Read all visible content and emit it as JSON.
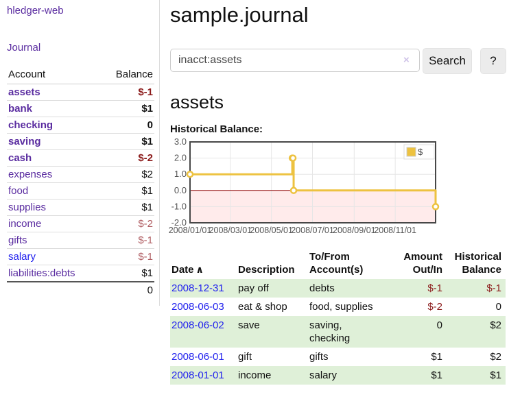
{
  "colors": {
    "link_purple": "#5a2ca0",
    "link_blue": "#2222ee",
    "negative_strong": "#8b1a1a",
    "negative_muted": "#b05d62",
    "row_stripe_green": "#dff0d8",
    "chart_line_gold": "#edc240",
    "chart_negative_fill": "#ffdddd",
    "chart_zero_line": "#8b0000",
    "button_bg": "#ececec"
  },
  "sidebar": {
    "app_title": "hledger-web",
    "journal_label": "Journal",
    "accounts": {
      "headers": {
        "account": "Account",
        "balance": "Balance"
      },
      "rows": [
        {
          "name": "assets",
          "balance": "$-1",
          "level": 0,
          "bold": true,
          "name_color": "purple",
          "balance_color": "negstrong"
        },
        {
          "name": "bank",
          "balance": "$1",
          "level": 1,
          "bold": true,
          "name_color": "purple",
          "balance_color": "black"
        },
        {
          "name": "checking",
          "balance": "0",
          "level": 2,
          "bold": true,
          "name_color": "purple",
          "balance_color": "black"
        },
        {
          "name": "saving",
          "balance": "$1",
          "level": 2,
          "bold": true,
          "name_color": "purple",
          "balance_color": "black"
        },
        {
          "name": "cash",
          "balance": "$-2",
          "level": 1,
          "bold": true,
          "name_color": "purple",
          "balance_color": "negstrong"
        },
        {
          "name": "expenses",
          "balance": "$2",
          "level": 0,
          "bold": false,
          "name_color": "purple",
          "balance_color": "black"
        },
        {
          "name": "food",
          "balance": "$1",
          "level": 1,
          "bold": false,
          "name_color": "purple",
          "balance_color": "black"
        },
        {
          "name": "supplies",
          "balance": "$1",
          "level": 1,
          "bold": false,
          "name_color": "purple",
          "balance_color": "black"
        },
        {
          "name": "income",
          "balance": "$-2",
          "level": 0,
          "bold": false,
          "name_color": "purple",
          "balance_color": "negmuted"
        },
        {
          "name": "gifts",
          "balance": "$-1",
          "level": 1,
          "bold": false,
          "name_color": "purple",
          "balance_color": "negmuted"
        },
        {
          "name": "salary",
          "balance": "$-1",
          "level": 1,
          "bold": false,
          "name_color": "blue",
          "balance_color": "negmuted"
        },
        {
          "name": "liabilities:debts",
          "balance": "$1",
          "level": 0,
          "bold": false,
          "name_color": "purple",
          "balance_color": "black"
        }
      ],
      "total": "0"
    }
  },
  "main": {
    "title": "sample.journal",
    "search": {
      "value": "inacct:assets",
      "clear_icon": "×",
      "search_label": "Search",
      "help_label": "?"
    },
    "account_heading": "assets",
    "chart_label": "Historical Balance:"
  },
  "chart_data": {
    "type": "line",
    "title": "Historical Balance:",
    "step": true,
    "series": [
      {
        "name": "$",
        "color": "#edc240",
        "points": [
          [
            "2008-01-01",
            1
          ],
          [
            "2008-06-01",
            2
          ],
          [
            "2008-06-02",
            2
          ],
          [
            "2008-06-03",
            0
          ],
          [
            "2008-12-31",
            -1
          ]
        ]
      }
    ],
    "x_ticks": [
      "2008/01/01",
      "2008/03/01",
      "2008/05/01",
      "2008/07/01",
      "2008/09/01",
      "2008/11/01"
    ],
    "y_ticks": [
      "3.0",
      "2.0",
      "1.0",
      "0.0",
      "-1.0",
      "-2.0"
    ],
    "xlim": [
      "2008-01-01",
      "2008-12-31"
    ],
    "ylim": [
      -2,
      3
    ],
    "grid": true,
    "legend": {
      "label": "$",
      "position": "top-right"
    },
    "negative_region_fill": "#ffdddd",
    "zero_line_color": "#8b0000"
  },
  "register": {
    "headers": {
      "date": "Date",
      "sort_icon": "∧",
      "description": "Description",
      "accounts_lines": [
        "To/From",
        "Account(s)"
      ],
      "amount_lines": [
        "Amount",
        "Out/In"
      ],
      "balance_lines": [
        "Historical",
        "Balance"
      ]
    },
    "rows": [
      {
        "date": "2008-12-31",
        "description": "pay off",
        "accounts_lines": [
          "debts"
        ],
        "amount": "$-1",
        "balance": "$-1",
        "amount_neg": true,
        "balance_neg": true,
        "striped": true
      },
      {
        "date": "2008-06-03",
        "description": "eat & shop",
        "accounts_lines": [
          "food, supplies"
        ],
        "amount": "$-2",
        "balance": "0",
        "amount_neg": true,
        "balance_neg": false,
        "striped": false
      },
      {
        "date": "2008-06-02",
        "description": "save",
        "accounts_lines": [
          "saving,",
          "checking"
        ],
        "amount": "0",
        "balance": "$2",
        "amount_neg": false,
        "balance_neg": false,
        "striped": true
      },
      {
        "date": "2008-06-01",
        "description": "gift",
        "accounts_lines": [
          "gifts"
        ],
        "amount": "$1",
        "balance": "$2",
        "amount_neg": false,
        "balance_neg": false,
        "striped": false
      },
      {
        "date": "2008-01-01",
        "description": "income",
        "accounts_lines": [
          "salary"
        ],
        "amount": "$1",
        "balance": "$1",
        "amount_neg": false,
        "balance_neg": false,
        "striped": true
      }
    ]
  }
}
